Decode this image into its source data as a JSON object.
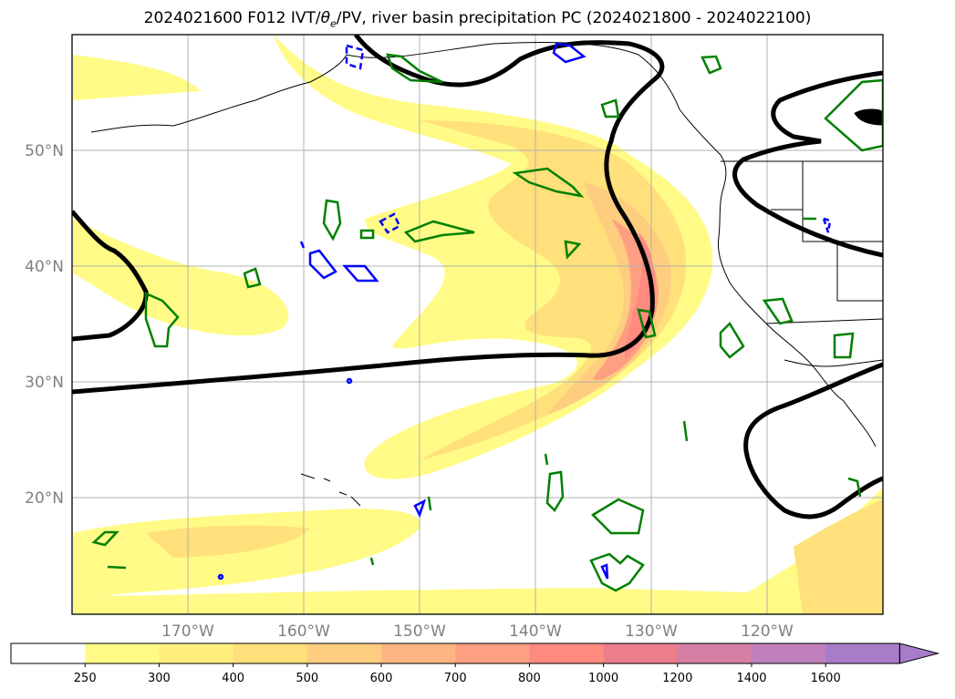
{
  "title": {
    "prefix": "2024021600 F012 IVT/",
    "theta": "θ",
    "theta_sub": "e",
    "suffix": "/PV, river basin precipitation PC (2024021800 - 2024022100)"
  },
  "map": {
    "lon_labels": [
      "170°W",
      "160°W",
      "150°W",
      "140°W",
      "130°W",
      "120°W"
    ],
    "lat_labels": [
      "50°N",
      "40°N",
      "30°N",
      "20°N"
    ]
  },
  "colorbar": {
    "ticks": [
      "250",
      "300",
      "400",
      "500",
      "600",
      "700",
      "800",
      "1000",
      "1200",
      "1400",
      "1600"
    ],
    "colors": [
      "#ffffff",
      "#fffb86",
      "#fff07d",
      "#ffe07b",
      "#ffcd80",
      "#ffb583",
      "#ff9f82",
      "#ff8a80",
      "#ec7d8a",
      "#d47fa3",
      "#bf80bd",
      "#a87cc9"
    ]
  },
  "colors": {
    "pv": "#000000",
    "theta_e_pos": "#008000",
    "theta_e_neg": "#0000ff",
    "gridline": "#b0b0b0"
  }
}
